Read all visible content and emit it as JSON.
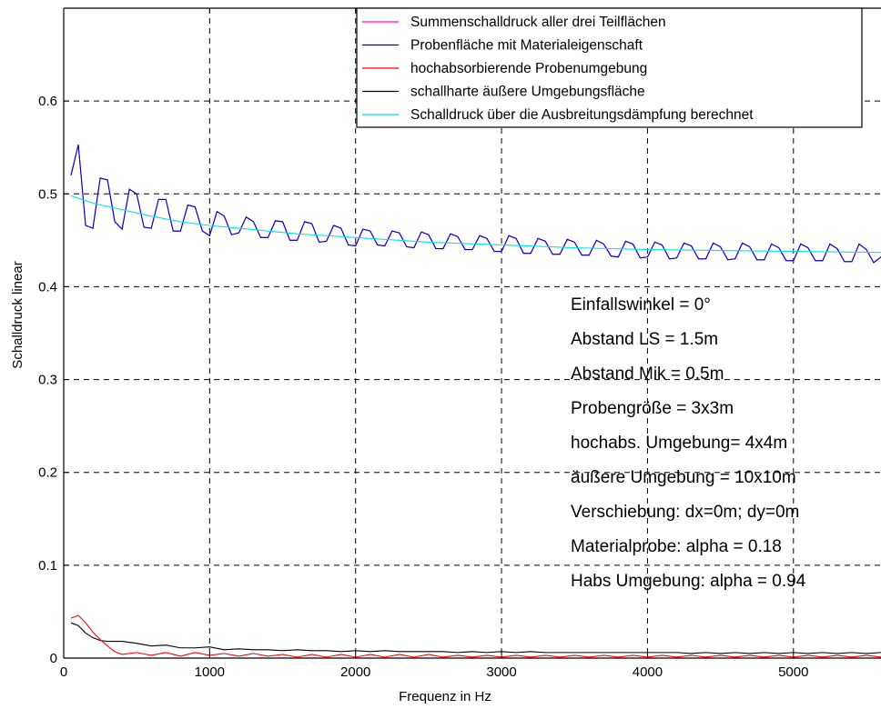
{
  "chart_data": {
    "type": "line",
    "title": "",
    "xlabel": "Frequenz in Hz",
    "ylabel": "Schalldruck linear",
    "xlim": [
      0,
      5600
    ],
    "ylim": [
      0,
      0.7
    ],
    "xticks": [
      0,
      1000,
      2000,
      3000,
      4000,
      5000
    ],
    "xtick_labels": [
      "0",
      "1000",
      "2000",
      "3000",
      "4000",
      "5000"
    ],
    "yticks": [
      0,
      0.1,
      0.2,
      0.3,
      0.4,
      0.5,
      0.6
    ],
    "ytick_labels": [
      "0",
      "0.1",
      "0.2",
      "0.3",
      "0.4",
      "0.5",
      "0.6"
    ],
    "grid": true,
    "legend_position": "top-right",
    "series": [
      {
        "name": "Summenschalldruck aller drei Teilflächen",
        "color": "#ff00ff",
        "x": [
          50,
          100,
          150,
          200,
          250,
          300,
          350,
          400,
          450,
          500,
          550,
          600,
          650,
          700,
          750,
          800,
          850,
          900,
          950,
          1000,
          1050,
          1100,
          1150,
          1200,
          1250,
          1300,
          1350,
          1400,
          1450,
          1500,
          1550,
          1600,
          1650,
          1700,
          1750,
          1800,
          1850,
          1900,
          1950,
          2000,
          2050,
          2100,
          2150,
          2200,
          2250,
          2300,
          2350,
          2400,
          2450,
          2500,
          2550,
          2600,
          2650,
          2700,
          2750,
          2800,
          2850,
          2900,
          2950,
          3000,
          3050,
          3100,
          3150,
          3200,
          3250,
          3300,
          3350,
          3400,
          3450,
          3500,
          3550,
          3600,
          3650,
          3700,
          3750,
          3800,
          3850,
          3900,
          3950,
          4000,
          4050,
          4100,
          4150,
          4200,
          4250,
          4300,
          4350,
          4400,
          4450,
          4500,
          4550,
          4600,
          4650,
          4700,
          4750,
          4800,
          4850,
          4900,
          4950,
          5000,
          5050,
          5100,
          5150,
          5200,
          5250,
          5300,
          5350,
          5400,
          5450,
          5500,
          5550,
          5600
        ],
        "y": [
          0.52,
          0.553,
          0.466,
          0.463,
          0.517,
          0.515,
          0.47,
          0.462,
          0.505,
          0.5,
          0.464,
          0.463,
          0.494,
          0.494,
          0.46,
          0.46,
          0.488,
          0.486,
          0.46,
          0.455,
          0.481,
          0.476,
          0.456,
          0.458,
          0.475,
          0.47,
          0.453,
          0.453,
          0.471,
          0.47,
          0.45,
          0.45,
          0.47,
          0.468,
          0.448,
          0.449,
          0.466,
          0.463,
          0.445,
          0.444,
          0.462,
          0.46,
          0.445,
          0.444,
          0.46,
          0.458,
          0.443,
          0.442,
          0.459,
          0.456,
          0.441,
          0.441,
          0.457,
          0.454,
          0.44,
          0.44,
          0.455,
          0.452,
          0.438,
          0.438,
          0.455,
          0.452,
          0.436,
          0.436,
          0.452,
          0.449,
          0.435,
          0.435,
          0.451,
          0.448,
          0.434,
          0.434,
          0.45,
          0.446,
          0.433,
          0.432,
          0.449,
          0.446,
          0.431,
          0.432,
          0.448,
          0.445,
          0.43,
          0.431,
          0.447,
          0.444,
          0.43,
          0.43,
          0.447,
          0.443,
          0.429,
          0.43,
          0.447,
          0.443,
          0.429,
          0.429,
          0.446,
          0.442,
          0.428,
          0.428,
          0.446,
          0.442,
          0.428,
          0.428,
          0.446,
          0.441,
          0.427,
          0.427,
          0.446,
          0.44,
          0.426,
          0.432
        ]
      },
      {
        "name": "Probenfläche mit Materialeigenschaft",
        "color": "#0000cc",
        "x": [
          50,
          100,
          150,
          200,
          250,
          300,
          350,
          400,
          450,
          500,
          550,
          600,
          650,
          700,
          750,
          800,
          850,
          900,
          950,
          1000,
          1050,
          1100,
          1150,
          1200,
          1250,
          1300,
          1350,
          1400,
          1450,
          1500,
          1550,
          1600,
          1650,
          1700,
          1750,
          1800,
          1850,
          1900,
          1950,
          2000,
          2050,
          2100,
          2150,
          2200,
          2250,
          2300,
          2350,
          2400,
          2450,
          2500,
          2550,
          2600,
          2650,
          2700,
          2750,
          2800,
          2850,
          2900,
          2950,
          3000,
          3050,
          3100,
          3150,
          3200,
          3250,
          3300,
          3350,
          3400,
          3450,
          3500,
          3550,
          3600,
          3650,
          3700,
          3750,
          3800,
          3850,
          3900,
          3950,
          4000,
          4050,
          4100,
          4150,
          4200,
          4250,
          4300,
          4350,
          4400,
          4450,
          4500,
          4550,
          4600,
          4650,
          4700,
          4750,
          4800,
          4850,
          4900,
          4950,
          5000,
          5050,
          5100,
          5150,
          5200,
          5250,
          5300,
          5350,
          5400,
          5450,
          5500,
          5550,
          5600
        ],
        "y": [
          0.52,
          0.553,
          0.466,
          0.463,
          0.517,
          0.515,
          0.47,
          0.462,
          0.505,
          0.5,
          0.464,
          0.463,
          0.494,
          0.494,
          0.46,
          0.46,
          0.488,
          0.486,
          0.46,
          0.455,
          0.481,
          0.476,
          0.456,
          0.458,
          0.475,
          0.47,
          0.453,
          0.453,
          0.471,
          0.47,
          0.45,
          0.45,
          0.47,
          0.468,
          0.448,
          0.449,
          0.466,
          0.463,
          0.445,
          0.444,
          0.462,
          0.46,
          0.445,
          0.444,
          0.46,
          0.458,
          0.443,
          0.442,
          0.459,
          0.456,
          0.441,
          0.441,
          0.457,
          0.454,
          0.44,
          0.44,
          0.455,
          0.452,
          0.438,
          0.438,
          0.455,
          0.452,
          0.436,
          0.436,
          0.452,
          0.449,
          0.435,
          0.435,
          0.451,
          0.448,
          0.434,
          0.434,
          0.45,
          0.446,
          0.433,
          0.432,
          0.449,
          0.446,
          0.431,
          0.432,
          0.448,
          0.445,
          0.43,
          0.431,
          0.447,
          0.444,
          0.43,
          0.43,
          0.447,
          0.443,
          0.429,
          0.43,
          0.447,
          0.443,
          0.429,
          0.429,
          0.446,
          0.442,
          0.428,
          0.428,
          0.446,
          0.442,
          0.428,
          0.428,
          0.446,
          0.441,
          0.427,
          0.427,
          0.446,
          0.44,
          0.426,
          0.432
        ]
      },
      {
        "name": "hochabsorbierende Probenumgebung",
        "color": "#ff0000",
        "x": [
          50,
          100,
          150,
          200,
          250,
          300,
          350,
          400,
          500,
          600,
          700,
          800,
          900,
          1000,
          1100,
          1200,
          1300,
          1400,
          1500,
          1600,
          1700,
          1800,
          1900,
          2000,
          2100,
          2200,
          2300,
          2400,
          2500,
          2600,
          2700,
          2800,
          2900,
          3000,
          3100,
          3200,
          3300,
          3400,
          3500,
          3600,
          3700,
          3800,
          3900,
          4000,
          4100,
          4200,
          4300,
          4400,
          4500,
          4600,
          4700,
          4800,
          4900,
          5000,
          5100,
          5200,
          5300,
          5400,
          5500,
          5600
        ],
        "y": [
          0.043,
          0.046,
          0.038,
          0.028,
          0.02,
          0.013,
          0.007,
          0.004,
          0.006,
          0.003,
          0.006,
          0.002,
          0.006,
          0.003,
          0.005,
          0.002,
          0.005,
          0.002,
          0.004,
          0.001,
          0.004,
          0.001,
          0.004,
          0.001,
          0.004,
          0.001,
          0.004,
          0.001,
          0.004,
          0.001,
          0.003,
          0.001,
          0.003,
          0.001,
          0.003,
          0.001,
          0.003,
          0.001,
          0.003,
          0.001,
          0.003,
          0.001,
          0.003,
          0.001,
          0.003,
          0.001,
          0.003,
          0.001,
          0.003,
          0.001,
          0.003,
          0.001,
          0.003,
          0.001,
          0.003,
          0.001,
          0.003,
          0.001,
          0.003,
          0.001
        ]
      },
      {
        "name": "schallharte äußere Umgebungsfläche",
        "color": "#000000",
        "x": [
          50,
          100,
          150,
          200,
          250,
          300,
          400,
          500,
          600,
          700,
          800,
          900,
          1000,
          1100,
          1200,
          1300,
          1400,
          1500,
          1600,
          1700,
          1800,
          1900,
          2000,
          2100,
          2200,
          2300,
          2400,
          2500,
          2600,
          2700,
          2800,
          2900,
          3000,
          3100,
          3200,
          3300,
          3400,
          3500,
          3600,
          3700,
          3800,
          3900,
          4000,
          4100,
          4200,
          4300,
          4400,
          4500,
          4600,
          4700,
          4800,
          4900,
          5000,
          5100,
          5200,
          5300,
          5400,
          5500,
          5600
        ],
        "y": [
          0.038,
          0.035,
          0.027,
          0.022,
          0.019,
          0.018,
          0.018,
          0.016,
          0.013,
          0.014,
          0.011,
          0.011,
          0.012,
          0.009,
          0.01,
          0.009,
          0.009,
          0.008,
          0.009,
          0.008,
          0.008,
          0.007,
          0.008,
          0.007,
          0.008,
          0.007,
          0.007,
          0.007,
          0.007,
          0.006,
          0.007,
          0.006,
          0.007,
          0.006,
          0.007,
          0.006,
          0.006,
          0.006,
          0.006,
          0.006,
          0.006,
          0.006,
          0.006,
          0.006,
          0.006,
          0.005,
          0.006,
          0.005,
          0.006,
          0.005,
          0.006,
          0.005,
          0.006,
          0.005,
          0.006,
          0.005,
          0.006,
          0.005,
          0.006
        ]
      },
      {
        "name": "Schalldruck über die Ausbreitungsdämpfung berechnet",
        "color": "#00e5e5",
        "x": [
          50,
          200,
          400,
          600,
          800,
          1000,
          1200,
          1400,
          1600,
          1800,
          2000,
          2500,
          3000,
          3500,
          4000,
          4500,
          5000,
          5600
        ],
        "y": [
          0.498,
          0.49,
          0.483,
          0.476,
          0.47,
          0.466,
          0.463,
          0.46,
          0.457,
          0.455,
          0.453,
          0.448,
          0.445,
          0.442,
          0.44,
          0.439,
          0.438,
          0.437
        ]
      }
    ],
    "annotations": [
      "Einfallswinkel = 0°",
      "Abstand LS = 1.5m",
      "Abstand Mik = 0.5m",
      "Probengröße = 3x3m",
      "hochabs. Umgebung= 4x4m",
      "äußere Umgebung = 10x10m",
      "Verschiebung: dx=0m; dy=0m",
      "Materialprobe: alpha = 0.18",
      "Habs Umgebung: alpha = 0.94"
    ]
  }
}
